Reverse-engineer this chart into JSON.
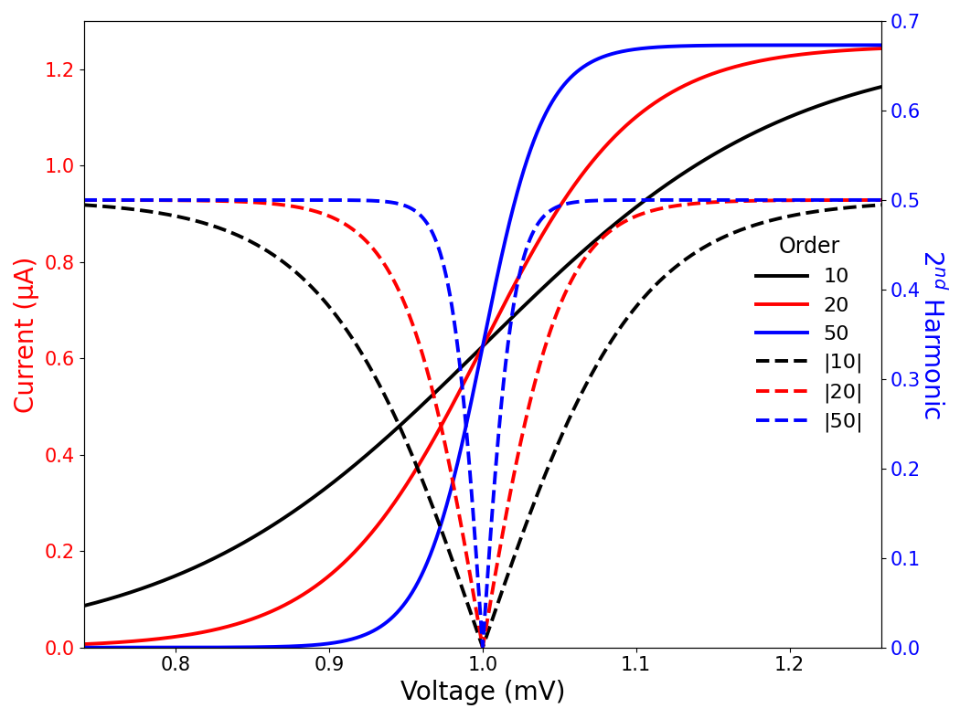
{
  "xlabel": "Voltage (mV)",
  "ylabel_left": "Current (μA)",
  "ylabel_right": "2$^{nd}$ Harmonic",
  "xlim": [
    0.74,
    1.26
  ],
  "ylim_left": [
    0.0,
    1.3
  ],
  "ylim_right": [
    0.0,
    0.7
  ],
  "V0": 1.0,
  "orders": [
    10,
    20,
    50
  ],
  "colors": [
    "black",
    "red",
    "blue"
  ],
  "solid_labels": [
    "10",
    "20",
    "50"
  ],
  "dashed_labels": [
    "|10|",
    "|20|",
    "|50|"
  ],
  "linewidth": 2.8,
  "legend_title": "Order",
  "figsize": [
    10.5,
    7.87
  ],
  "dpi": 100,
  "I_max_solid": 1.25,
  "I_max_dashed": 0.5,
  "scale_factors": [
    10,
    20,
    50
  ],
  "alpha_base": 1.0
}
